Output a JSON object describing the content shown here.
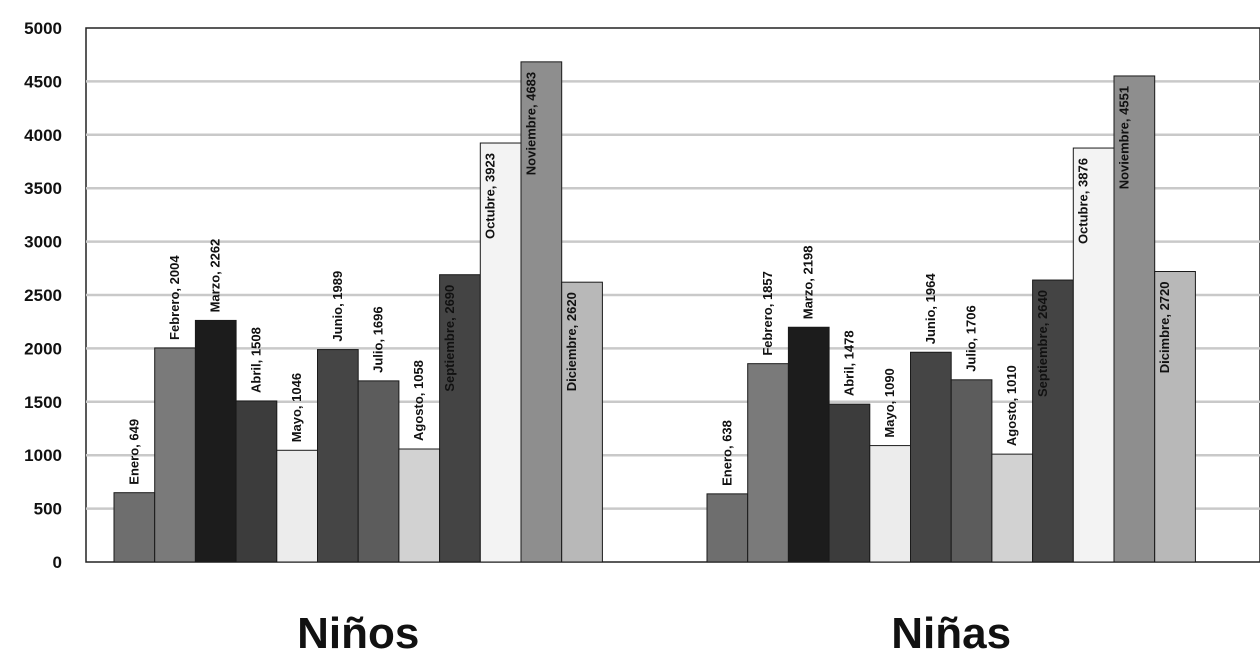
{
  "chart_data": {
    "type": "bar",
    "categories": [
      "Niños",
      "Niñas"
    ],
    "series": [
      {
        "name": "Enero",
        "values": [
          649,
          638
        ],
        "color": "#6e6e6e"
      },
      {
        "name": "Febrero",
        "values": [
          2004,
          1857
        ],
        "color": "#7a7a7a"
      },
      {
        "name": "Marzo",
        "values": [
          2262,
          2198
        ],
        "color": "#1c1c1c"
      },
      {
        "name": "Abril",
        "values": [
          1508,
          1478
        ],
        "color": "#3c3c3c"
      },
      {
        "name": "Mayo",
        "values": [
          1046,
          1090
        ],
        "color": "#ececec"
      },
      {
        "name": "Junio",
        "values": [
          1989,
          1964
        ],
        "color": "#454545"
      },
      {
        "name": "Julio",
        "values": [
          1696,
          1706
        ],
        "color": "#5c5c5c"
      },
      {
        "name": "Agosto",
        "values": [
          1058,
          1010
        ],
        "color": "#d2d2d2"
      },
      {
        "name": "Septiembre",
        "values": [
          2690,
          2640
        ],
        "color": "#444444"
      },
      {
        "name": "Octubre",
        "values": [
          3923,
          3876
        ],
        "color": "#f3f3f3"
      },
      {
        "name": "Noviembre",
        "values": [
          4683,
          4551
        ],
        "color": "#8e8e8e"
      },
      {
        "name": "Diciembre",
        "values": [
          2620,
          2720
        ],
        "color": "#b8b8b8"
      }
    ],
    "ylim": [
      0,
      5000
    ],
    "yticks": [
      0,
      500,
      1000,
      1500,
      2000,
      2500,
      3000,
      3500,
      4000,
      4500,
      5000
    ],
    "grid": true,
    "data_labels": [
      [
        "Enero, 649",
        "Febrero, 2004",
        "Marzo, 2262",
        "Abril, 1508",
        "Mayo, 1046",
        "Junio, 1989",
        "Julio, 1696",
        "Agosto, 1058",
        "Septiembre, 2690",
        "Octubre, 3923",
        "Noviembre, 4683",
        "Diciembre, 2620"
      ],
      [
        "Enero, 638",
        "Febrero, 1857",
        "Marzo, 2198",
        "Abril, 1478",
        "Mayo, 1090",
        "Junio, 1964",
        "Julio, 1706",
        "Agosto, 1010",
        "Septiembre, 2640",
        "Octubre, 3876",
        "Noviembre, 4551",
        "Dicimbre, 2720"
      ]
    ]
  }
}
